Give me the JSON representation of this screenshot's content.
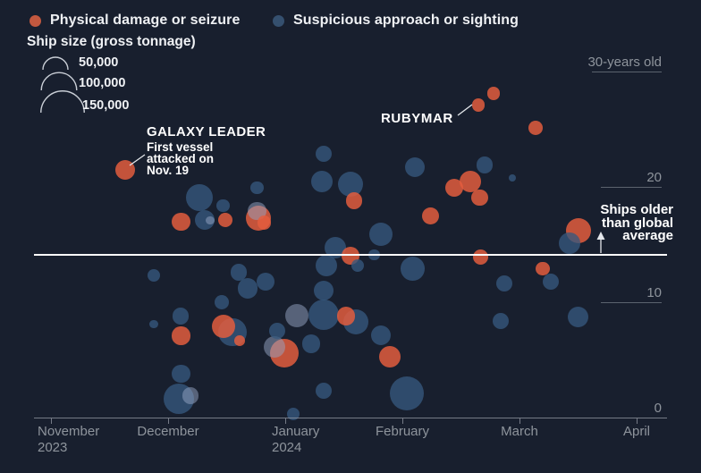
{
  "colors": {
    "background": "#181F2E",
    "damage": "#C2583F",
    "approach": "#2E4A6A",
    "approach_light": "#515E78",
    "axis_text": "#8E949C",
    "average_line": "#FFFFFF",
    "annotation_text": "#FFFFFF"
  },
  "annotations": {
    "galaxy_leader": {
      "title": "GALAXY LEADER",
      "body": "First vessel\nattacked on\nNov. 19"
    },
    "rubymar": {
      "label": "RUBYMAR"
    },
    "older_than_average": {
      "label": "Ships older\nthan global\naverage"
    }
  },
  "chart_data": {
    "type": "scatter",
    "subtype": "bubble",
    "series": [
      {
        "key": "damage",
        "name": "Physical damage or seizure",
        "color": "#C2583F"
      },
      {
        "key": "approach",
        "name": "Suspicious approach or sighting",
        "color": "#35506F"
      }
    ],
    "size_encoding": {
      "title": "Ship size (gross tonnage)",
      "entries": [
        {
          "label": "50,000",
          "gt": 50000
        },
        {
          "label": "100,000",
          "gt": 100000
        },
        {
          "label": "150,000",
          "gt": 150000
        }
      ]
    },
    "x_axis": {
      "unit": "months since 2023-11-01 (0 = Nov 1 2023, 1 = Dec 1, ... 5 = Apr 1 2024)",
      "tick_labels": [
        {
          "label": "November",
          "sub": "2023"
        },
        {
          "label": "December"
        },
        {
          "label": "January",
          "sub": "2024"
        },
        {
          "label": "February"
        },
        {
          "label": "March"
        },
        {
          "label": "April"
        }
      ]
    },
    "y_axis": {
      "unit": "ship age, years",
      "range": [
        0,
        31
      ],
      "ticks": [
        {
          "label": "30-years old",
          "value": 30
        },
        {
          "label": "20",
          "value": 20
        },
        {
          "label": "10",
          "value": 10
        },
        {
          "label": "0",
          "value": 0
        }
      ]
    },
    "average_line": {
      "value": 14.1,
      "label": "Ships older than global average"
    },
    "points": [
      {
        "x": 0.63,
        "age": 21.5,
        "gt": 31000,
        "type": "damage",
        "name": "Galaxy Leader"
      },
      {
        "x": 1.11,
        "age": 17.0,
        "gt": 26000,
        "type": "damage"
      },
      {
        "x": 1.27,
        "age": 19.1,
        "gt": 57000,
        "type": "approach"
      },
      {
        "x": 1.31,
        "age": 17.1,
        "gt": 31000,
        "type": "approach"
      },
      {
        "x": 1.36,
        "age": 17.1,
        "gt": 6000,
        "type": "approach",
        "tone": "light"
      },
      {
        "x": 1.47,
        "age": 18.4,
        "gt": 13000,
        "type": "approach"
      },
      {
        "x": 1.49,
        "age": 17.1,
        "gt": 16000,
        "type": "damage"
      },
      {
        "x": 1.76,
        "age": 19.9,
        "gt": 13000,
        "type": "approach"
      },
      {
        "x": 1.76,
        "age": 17.9,
        "gt": 26000,
        "type": "approach",
        "tone": "light"
      },
      {
        "x": 1.77,
        "age": 17.3,
        "gt": 50000,
        "type": "damage"
      },
      {
        "x": 1.82,
        "age": 16.9,
        "gt": 16000,
        "type": "damage"
      },
      {
        "x": 2.33,
        "age": 22.9,
        "gt": 21000,
        "type": "approach"
      },
      {
        "x": 2.31,
        "age": 20.5,
        "gt": 37000,
        "type": "approach"
      },
      {
        "x": 2.56,
        "age": 20.2,
        "gt": 50000,
        "type": "approach"
      },
      {
        "x": 2.59,
        "age": 18.8,
        "gt": 21000,
        "type": "damage"
      },
      {
        "x": 3.11,
        "age": 21.7,
        "gt": 31000,
        "type": "approach"
      },
      {
        "x": 3.44,
        "age": 19.9,
        "gt": 26000,
        "type": "damage"
      },
      {
        "x": 3.58,
        "age": 20.5,
        "gt": 37000,
        "type": "damage"
      },
      {
        "x": 3.66,
        "age": 19.1,
        "gt": 21000,
        "type": "damage"
      },
      {
        "x": 3.24,
        "age": 17.5,
        "gt": 23000,
        "type": "damage"
      },
      {
        "x": 2.82,
        "age": 15.9,
        "gt": 43000,
        "type": "approach"
      },
      {
        "x": 2.43,
        "age": 14.7,
        "gt": 37000,
        "type": "approach"
      },
      {
        "x": 2.56,
        "age": 14.0,
        "gt": 26000,
        "type": "damage"
      },
      {
        "x": 2.76,
        "age": 14.1,
        "gt": 10000,
        "type": "approach"
      },
      {
        "x": 3.09,
        "age": 12.9,
        "gt": 46000,
        "type": "approach"
      },
      {
        "x": 2.35,
        "age": 13.2,
        "gt": 37000,
        "type": "approach"
      },
      {
        "x": 3.67,
        "age": 13.9,
        "gt": 19000,
        "type": "damage"
      },
      {
        "x": 3.65,
        "age": 27.1,
        "gt": 13000,
        "type": "damage",
        "name": "Rubymar"
      },
      {
        "x": 3.78,
        "age": 28.1,
        "gt": 13000,
        "type": "damage"
      },
      {
        "x": 4.14,
        "age": 25.1,
        "gt": 16000,
        "type": "damage"
      },
      {
        "x": 3.7,
        "age": 21.9,
        "gt": 21000,
        "type": "approach"
      },
      {
        "x": 3.94,
        "age": 20.8,
        "gt": 4000,
        "type": "approach"
      },
      {
        "x": 4.5,
        "age": 16.2,
        "gt": 50000,
        "type": "damage"
      },
      {
        "x": 4.43,
        "age": 15.1,
        "gt": 37000,
        "type": "approach"
      },
      {
        "x": 4.2,
        "age": 12.9,
        "gt": 16000,
        "type": "damage"
      },
      {
        "x": 4.27,
        "age": 11.8,
        "gt": 21000,
        "type": "approach"
      },
      {
        "x": 3.87,
        "age": 11.6,
        "gt": 21000,
        "type": "approach"
      },
      {
        "x": 3.84,
        "age": 8.4,
        "gt": 21000,
        "type": "approach"
      },
      {
        "x": 4.5,
        "age": 8.7,
        "gt": 35000,
        "type": "approach"
      },
      {
        "x": 0.88,
        "age": 12.3,
        "gt": 13000,
        "type": "approach"
      },
      {
        "x": 1.6,
        "age": 12.6,
        "gt": 21000,
        "type": "approach"
      },
      {
        "x": 1.68,
        "age": 11.2,
        "gt": 31000,
        "type": "approach"
      },
      {
        "x": 1.83,
        "age": 11.8,
        "gt": 26000,
        "type": "approach"
      },
      {
        "x": 1.46,
        "age": 10.0,
        "gt": 16000,
        "type": "approach"
      },
      {
        "x": 1.11,
        "age": 8.8,
        "gt": 21000,
        "type": "approach"
      },
      {
        "x": 0.88,
        "age": 8.1,
        "gt": 6000,
        "type": "approach"
      },
      {
        "x": 1.11,
        "age": 7.1,
        "gt": 26000,
        "type": "damage"
      },
      {
        "x": 1.47,
        "age": 7.9,
        "gt": 43000,
        "type": "damage"
      },
      {
        "x": 1.55,
        "age": 7.4,
        "gt": 65000,
        "type": "approach"
      },
      {
        "x": 1.61,
        "age": 6.7,
        "gt": 9000,
        "type": "damage"
      },
      {
        "x": 2.1,
        "age": 8.8,
        "gt": 43000,
        "type": "approach",
        "tone": "light"
      },
      {
        "x": 1.93,
        "age": 7.5,
        "gt": 21000,
        "type": "approach"
      },
      {
        "x": 1.91,
        "age": 6.1,
        "gt": 37000,
        "type": "approach",
        "tone": "light"
      },
      {
        "x": 1.99,
        "age": 5.6,
        "gt": 65000,
        "type": "damage"
      },
      {
        "x": 2.22,
        "age": 6.4,
        "gt": 26000,
        "type": "approach"
      },
      {
        "x": 2.33,
        "age": 8.9,
        "gt": 74000,
        "type": "approach"
      },
      {
        "x": 2.52,
        "age": 8.8,
        "gt": 26000,
        "type": "damage"
      },
      {
        "x": 2.6,
        "age": 8.3,
        "gt": 50000,
        "type": "approach"
      },
      {
        "x": 2.33,
        "age": 11.0,
        "gt": 31000,
        "type": "approach"
      },
      {
        "x": 2.62,
        "age": 13.2,
        "gt": 13000,
        "type": "approach"
      },
      {
        "x": 2.82,
        "age": 7.1,
        "gt": 31000,
        "type": "approach"
      },
      {
        "x": 2.89,
        "age": 5.3,
        "gt": 37000,
        "type": "damage"
      },
      {
        "x": 2.33,
        "age": 2.3,
        "gt": 21000,
        "type": "approach"
      },
      {
        "x": 3.04,
        "age": 2.1,
        "gt": 92000,
        "type": "approach"
      },
      {
        "x": 2.07,
        "age": 0.3,
        "gt": 13000,
        "type": "approach"
      },
      {
        "x": 1.11,
        "age": 3.8,
        "gt": 26000,
        "type": "approach"
      },
      {
        "x": 1.09,
        "age": 1.6,
        "gt": 74000,
        "type": "approach"
      },
      {
        "x": 1.19,
        "age": 1.9,
        "gt": 21000,
        "type": "approach",
        "tone": "light"
      }
    ]
  }
}
